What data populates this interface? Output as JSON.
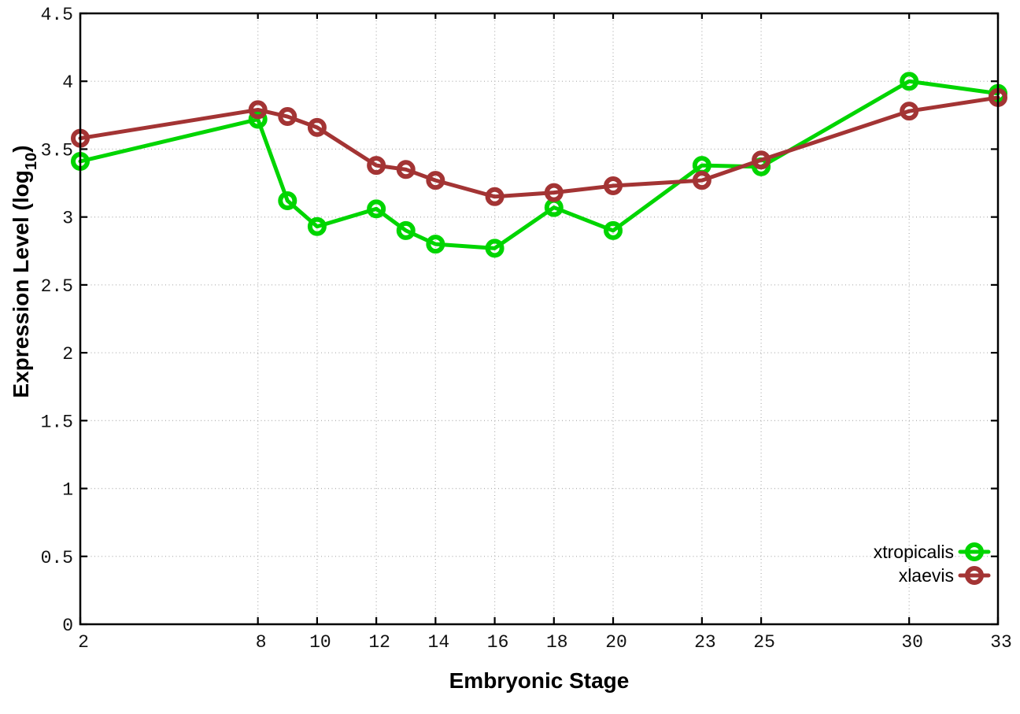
{
  "chart_data": {
    "type": "line",
    "title": "",
    "xlabel": "Embryonic Stage",
    "ylabel": "Expression Level (log10)",
    "ylabel_parts": {
      "main": "Expression Level (log",
      "sub": "10",
      "close": ")"
    },
    "x": [
      2,
      8,
      9,
      10,
      12,
      13,
      14,
      16,
      18,
      20,
      23,
      25,
      30,
      33
    ],
    "xlim": [
      2,
      33
    ],
    "ylim": [
      0,
      4.5
    ],
    "xticks": [
      "2",
      "8",
      "10",
      "12",
      "14",
      "16",
      "18",
      "20",
      "23",
      "25",
      "30",
      "33"
    ],
    "yticks": [
      "0",
      "0.5",
      "1",
      "1.5",
      "2",
      "2.5",
      "3",
      "3.5",
      "4",
      "4.5"
    ],
    "grid": true,
    "grid_color": "#b4b4b4",
    "border_color": "#000000",
    "legend_position": "bottom-right",
    "series": [
      {
        "name": "xtropicalis",
        "color": "#00d500",
        "values": [
          3.41,
          3.72,
          3.12,
          2.93,
          3.06,
          2.9,
          2.8,
          2.77,
          3.07,
          2.9,
          3.38,
          3.37,
          4.0,
          3.91
        ]
      },
      {
        "name": "xlaevis",
        "color": "#a33434",
        "values": [
          3.58,
          3.79,
          3.74,
          3.66,
          3.38,
          3.35,
          3.27,
          3.15,
          3.18,
          3.23,
          3.27,
          3.42,
          3.78,
          3.88
        ]
      }
    ]
  }
}
